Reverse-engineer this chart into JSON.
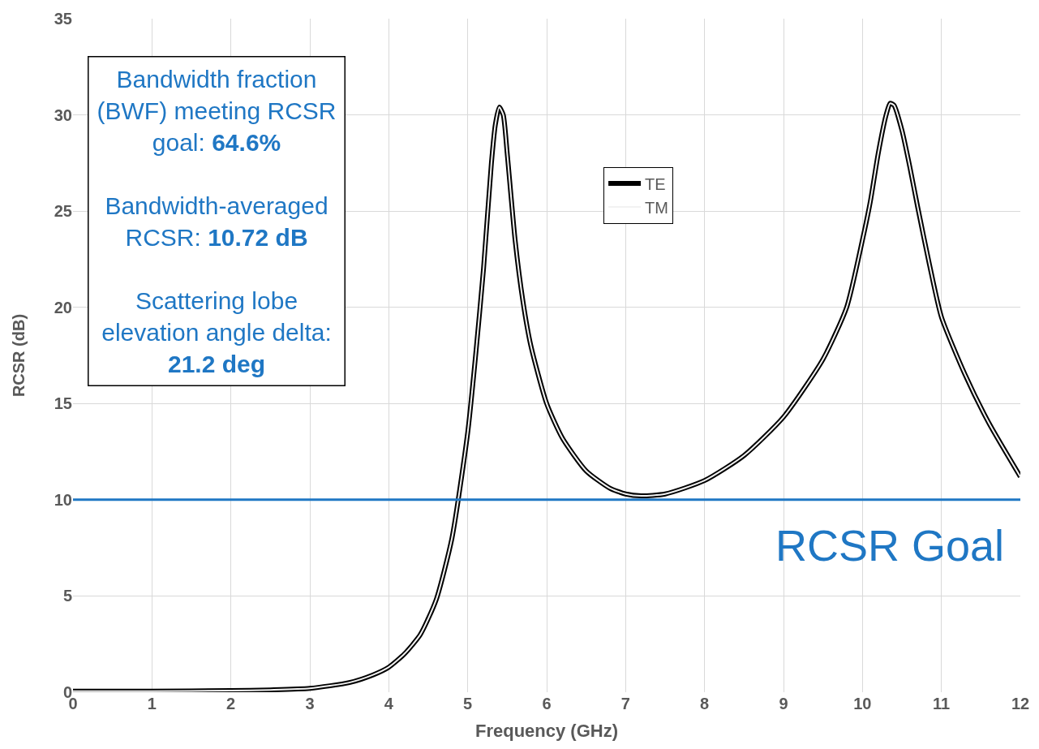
{
  "chart_data": {
    "type": "line",
    "xlabel": "Frequency (GHz)",
    "ylabel": "RCSR (dB)",
    "x": [
      0,
      1,
      2,
      2.5,
      3,
      3.5,
      3.8,
      4,
      4.2,
      4.4,
      4.6,
      4.8,
      5.0,
      5.1,
      5.2,
      5.3,
      5.35,
      5.4,
      5.45,
      5.5,
      5.6,
      5.7,
      5.8,
      6.0,
      6.2,
      6.5,
      6.8,
      7.0,
      7.2,
      7.5,
      8.0,
      8.5,
      9.0,
      9.5,
      9.8,
      10.0,
      10.1,
      10.2,
      10.3,
      10.35,
      10.4,
      10.5,
      10.6,
      10.7,
      10.85,
      11.0,
      11.3,
      11.6,
      12.0
    ],
    "series": [
      {
        "name": "TE",
        "color": "#000000",
        "values": [
          0.05,
          0.05,
          0.08,
          0.12,
          0.2,
          0.5,
          0.9,
          1.3,
          2.0,
          3.0,
          4.8,
          8.0,
          13.5,
          17.5,
          22.0,
          27.5,
          29.5,
          30.4,
          30.0,
          28.0,
          23.5,
          20.3,
          18.0,
          15.0,
          13.2,
          11.5,
          10.6,
          10.3,
          10.2,
          10.3,
          11.0,
          12.3,
          14.3,
          17.3,
          20.0,
          23.5,
          25.5,
          28.0,
          30.0,
          30.6,
          30.5,
          29.2,
          27.3,
          25.2,
          22.2,
          19.5,
          16.5,
          14.0,
          11.2
        ]
      },
      {
        "name": "TM",
        "color": "#f2f2f2",
        "values": [
          0.05,
          0.05,
          0.08,
          0.12,
          0.2,
          0.5,
          0.9,
          1.3,
          2.0,
          3.0,
          4.8,
          8.0,
          13.5,
          17.5,
          22.0,
          27.5,
          29.5,
          30.4,
          30.0,
          28.0,
          23.5,
          20.3,
          18.0,
          15.0,
          13.2,
          11.5,
          10.6,
          10.3,
          10.2,
          10.3,
          11.0,
          12.3,
          14.3,
          17.3,
          20.0,
          23.5,
          25.5,
          28.0,
          30.0,
          30.6,
          30.5,
          29.2,
          27.3,
          25.2,
          22.2,
          19.5,
          16.5,
          14.0,
          11.2
        ]
      }
    ],
    "xlim": [
      0,
      12
    ],
    "xticks": [
      0,
      1,
      2,
      3,
      4,
      5,
      6,
      7,
      8,
      9,
      10,
      11,
      12
    ],
    "ylim": [
      0,
      35
    ],
    "yticks": [
      0,
      5,
      10,
      15,
      20,
      25,
      30,
      35
    ],
    "grid": true,
    "legend": "top",
    "marker": "none",
    "line_style": "solid",
    "ref_lines": [
      {
        "axis": "y",
        "value": 10,
        "label": "RCSR Goal",
        "color": "#1f77c4"
      }
    ],
    "annotations": [
      "Bandwidth fraction (BWF) meeting RCSR goal:  64.6%",
      "Bandwidth-averaged RCSR:  10.72 dB",
      "Scattering lobe elevation angle delta: 21.2 deg"
    ]
  }
}
